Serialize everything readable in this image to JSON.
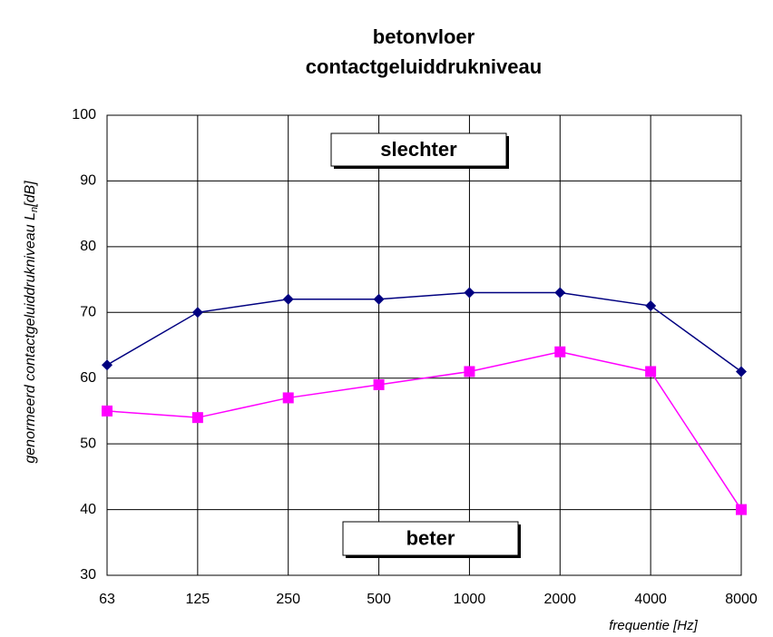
{
  "chart_data": {
    "type": "line",
    "title": [
      "betonvloer",
      "contactgeluiddrukniveau"
    ],
    "xlabel": "frequentie [Hz]",
    "ylabel": {
      "main": "genormeerd contactgeluiddrukniveau L",
      "sub": "n",
      "unit": "[dB]"
    },
    "annotations": [
      "slechter",
      "beter"
    ],
    "categories": [
      "63",
      "125",
      "250",
      "500",
      "1000",
      "2000",
      "4000",
      "8000"
    ],
    "series": [
      {
        "color": "#000080",
        "marker": "diamond",
        "values": [
          62,
          70,
          72,
          72,
          73,
          73,
          71,
          61
        ]
      },
      {
        "color": "#ff00ff",
        "marker": "square",
        "values": [
          55,
          54,
          57,
          59,
          61,
          64,
          61,
          40
        ]
      }
    ],
    "ylim": [
      30,
      100
    ],
    "yticks": [
      30,
      40,
      50,
      60,
      70,
      80,
      90,
      100
    ],
    "grid": true
  }
}
